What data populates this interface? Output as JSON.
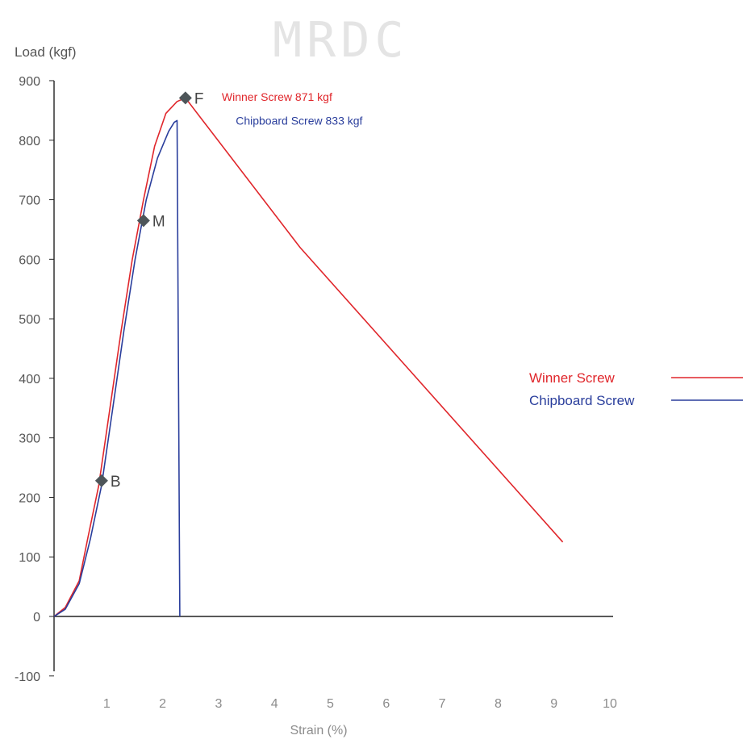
{
  "watermark": "MRDC",
  "chart_data": {
    "type": "line",
    "ylabel": "Load (kgf)",
    "xlabel": "Strain (%)",
    "xlim": [
      0,
      10
    ],
    "ylim": [
      -100,
      900
    ],
    "x_ticks": [
      "1",
      "2",
      "3",
      "4",
      "5",
      "6",
      "7",
      "8",
      "9",
      "10"
    ],
    "y_ticks": [
      "900",
      "800",
      "700",
      "600",
      "500",
      "400",
      "300",
      "200",
      "100",
      "0",
      "-100"
    ],
    "grid": false,
    "legend_position": "right",
    "series": [
      {
        "name": "Winner Screw",
        "color": "#e0262b",
        "points": [
          [
            0,
            0
          ],
          [
            0.2,
            15
          ],
          [
            0.45,
            60
          ],
          [
            0.6,
            130
          ],
          [
            0.8,
            220
          ],
          [
            1.0,
            350
          ],
          [
            1.2,
            480
          ],
          [
            1.4,
            600
          ],
          [
            1.6,
            700
          ],
          [
            1.8,
            790
          ],
          [
            2.0,
            845
          ],
          [
            2.2,
            865
          ],
          [
            2.35,
            871
          ],
          [
            4.4,
            620
          ],
          [
            9.1,
            125
          ]
        ]
      },
      {
        "name": "Chipboard Screw",
        "color": "#2a3e9c",
        "points": [
          [
            0,
            0
          ],
          [
            0.2,
            12
          ],
          [
            0.45,
            55
          ],
          [
            0.65,
            130
          ],
          [
            0.85,
            220
          ],
          [
            1.05,
            350
          ],
          [
            1.25,
            480
          ],
          [
            1.45,
            600
          ],
          [
            1.65,
            700
          ],
          [
            1.85,
            770
          ],
          [
            2.05,
            815
          ],
          [
            2.15,
            830
          ],
          [
            2.2,
            833
          ],
          [
            2.25,
            0
          ]
        ]
      }
    ],
    "markers": [
      {
        "label": "B",
        "x": 0.85,
        "y": 228
      },
      {
        "label": "M",
        "x": 1.6,
        "y": 665
      },
      {
        "label": "F",
        "x": 2.35,
        "y": 871
      }
    ],
    "annotations": [
      {
        "text": "Winner Screw 871 kgf",
        "series": "Winner Screw",
        "x": 3.0,
        "y": 866
      },
      {
        "text": "Chipboard Screw 833 kgf",
        "series": "Chipboard Screw",
        "x": 3.25,
        "y": 826
      }
    ]
  }
}
